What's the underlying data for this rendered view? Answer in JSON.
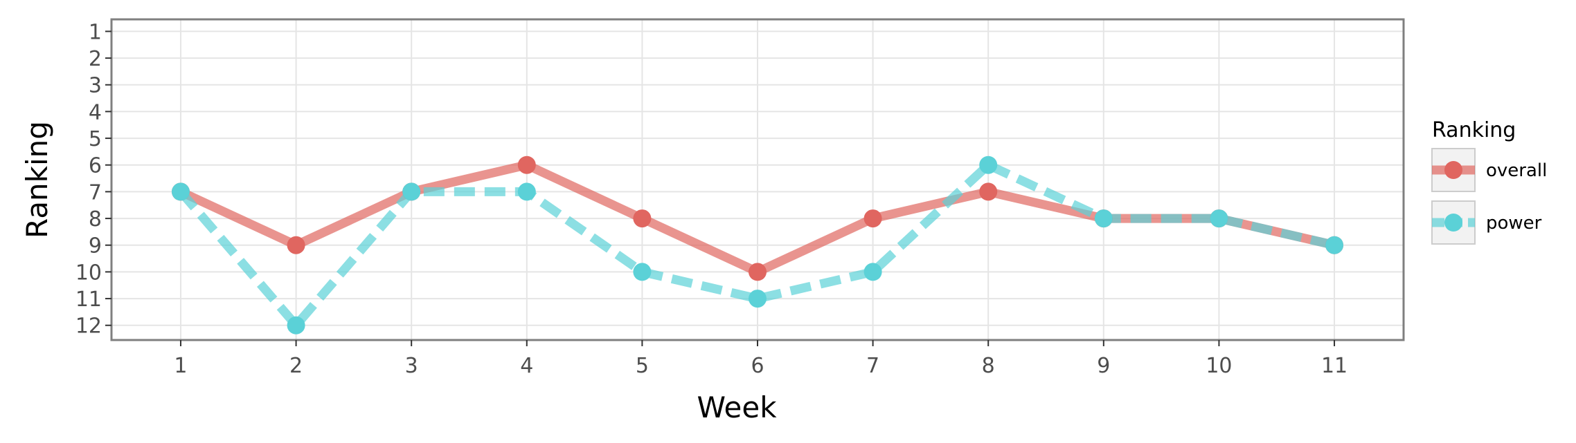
{
  "chart_data": {
    "type": "line",
    "xlabel": "Week",
    "ylabel": "Ranking",
    "x": [
      1,
      2,
      3,
      4,
      5,
      6,
      7,
      8,
      9,
      10,
      11
    ],
    "x_tick_labels": [
      "1",
      "2",
      "3",
      "4",
      "5",
      "6",
      "7",
      "8",
      "9",
      "10",
      "11"
    ],
    "y_tick_labels": [
      "1",
      "2",
      "3",
      "4",
      "5",
      "6",
      "7",
      "8",
      "9",
      "10",
      "11",
      "12"
    ],
    "xlim": [
      0.4,
      11.6
    ],
    "ylim": [
      0.55,
      12.55
    ],
    "y_axis_reversed": true,
    "grid": true,
    "legend": {
      "title": "Ranking",
      "placement": "right"
    },
    "series": [
      {
        "name": "overall",
        "color": "#e06660",
        "line_style": "solid",
        "values": [
          7,
          9,
          7,
          6,
          8,
          10,
          8,
          7,
          8,
          8,
          9
        ]
      },
      {
        "name": "power",
        "color": "#5bd1d7",
        "line_style": "dashed",
        "values": [
          7,
          12,
          7,
          7,
          10,
          11,
          10,
          6,
          8,
          8,
          9
        ]
      }
    ]
  }
}
